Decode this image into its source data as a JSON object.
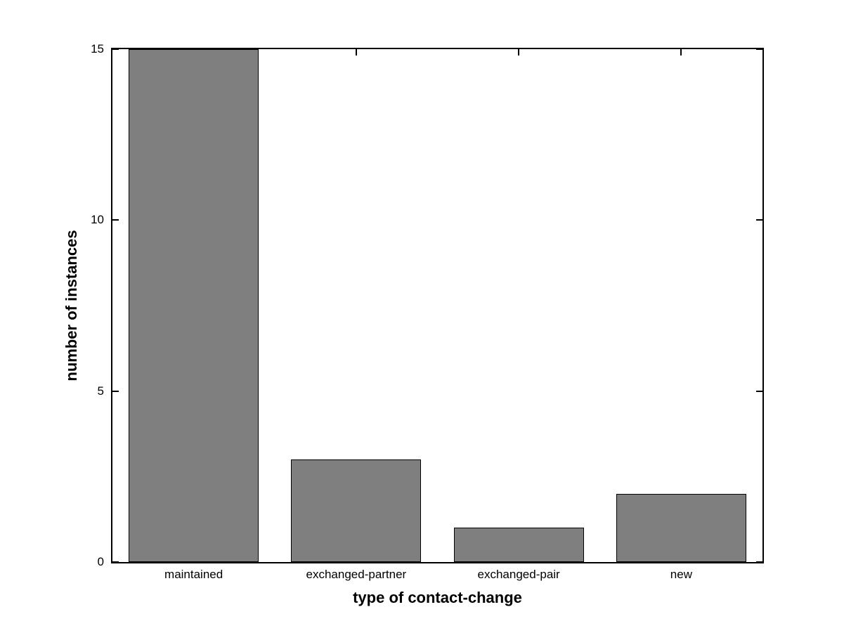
{
  "chart_data": {
    "type": "bar",
    "title": "",
    "categories": [
      "maintained",
      "exchanged-partner",
      "exchanged-pair",
      "new"
    ],
    "values": [
      15,
      3,
      1,
      2
    ],
    "xlabel": "type of contact-change",
    "ylabel": "number of instances",
    "ylim": [
      0,
      15
    ],
    "yticks": [
      0,
      5,
      10,
      15
    ],
    "bar_width_fraction": 0.8,
    "grid": false,
    "legend_position": "none",
    "colors": {
      "bar_fill": "#7f7f7f",
      "bar_edge": "#000000",
      "axis": "#000000",
      "background": "#ffffff",
      "text": "#000000"
    }
  }
}
